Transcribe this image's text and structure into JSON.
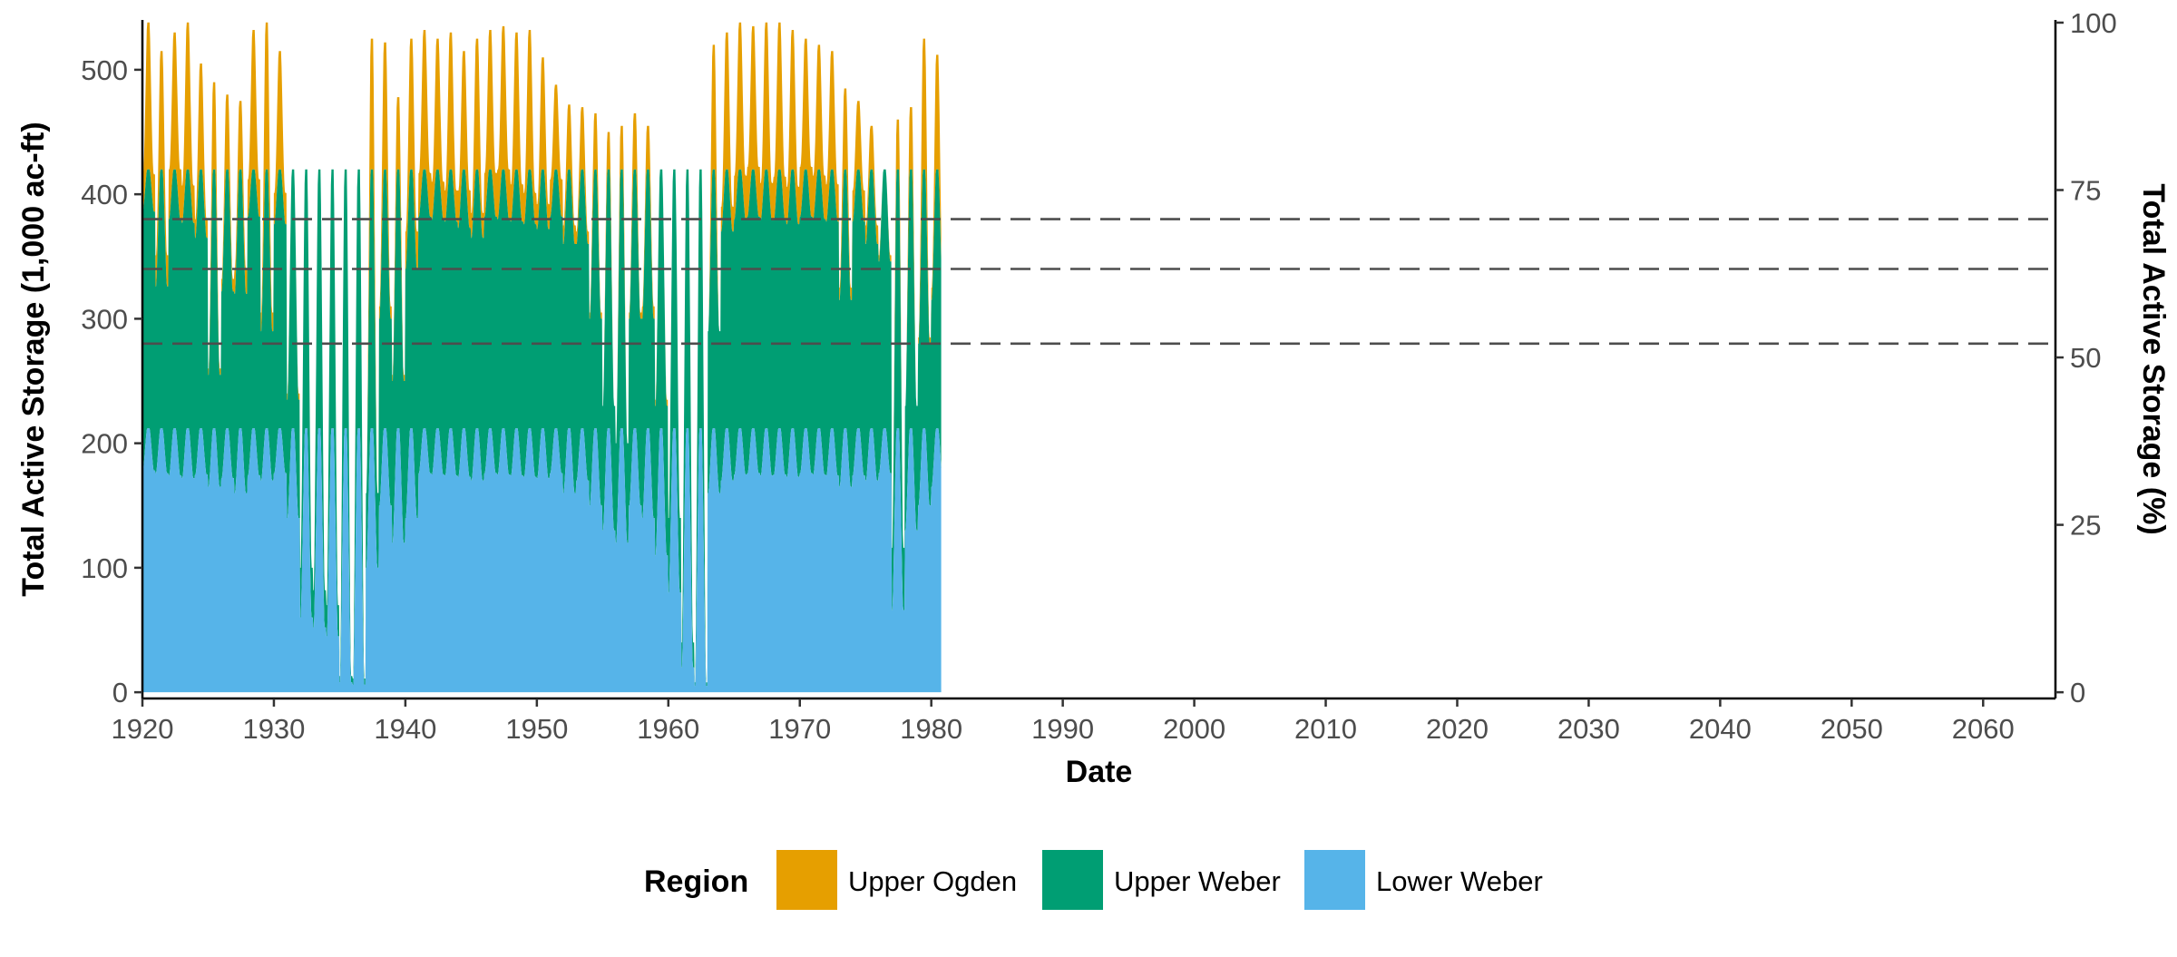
{
  "chart_data": {
    "type": "area",
    "stacked": true,
    "x_axis": {
      "label": "Date",
      "range": [
        1920,
        2065.5
      ],
      "ticks": [
        1920,
        1930,
        1940,
        1950,
        1960,
        1970,
        1980,
        1990,
        2000,
        2010,
        2020,
        2030,
        2040,
        2050,
        2060
      ]
    },
    "y_axis_left": {
      "label": "Total Active Storage (1,000 ac-ft)",
      "range": [
        -5,
        540
      ],
      "ticks": [
        0,
        100,
        200,
        300,
        400,
        500
      ]
    },
    "y_axis_right": {
      "label": "Total Active Storage (%)",
      "range": [
        -0.93,
        100.4
      ],
      "ticks": [
        0,
        25,
        50,
        75,
        100
      ],
      "conversion": "100% = 538 thousand ac-ft"
    },
    "reference_lines": [
      {
        "y": 380,
        "style": "dashed"
      },
      {
        "y": 340,
        "style": "dashed"
      },
      {
        "y": 280,
        "style": "dashed"
      }
    ],
    "grid": false,
    "legend": {
      "title": "Region",
      "position": "bottom",
      "entries": [
        {
          "name": "Upper Ogden",
          "color": "#E69F00"
        },
        {
          "name": "Upper Weber",
          "color": "#009E73"
        },
        {
          "name": "Lower Weber",
          "color": "#56B4E9"
        }
      ]
    },
    "series": [
      {
        "name": "Lower Weber",
        "color": "#56B4E9",
        "capacity": 212,
        "annual_min": [
          178,
          176,
          174,
          172,
          175,
          165,
          172,
          160,
          174,
          170,
          176,
          140,
          60,
          52,
          45,
          8,
          6,
          100,
          150,
          120,
          140,
          176,
          175,
          174,
          173,
          170,
          176,
          175,
          174,
          173,
          172,
          176,
          160,
          170,
          150,
          130,
          120,
          150,
          140,
          110,
          80,
          20,
          5,
          160,
          170,
          175,
          176,
          174,
          175,
          173,
          176,
          175,
          174,
          165,
          174,
          170,
          176,
          66,
          130,
          150,
          165
        ]
      },
      {
        "name": "Upper Weber",
        "color": "#009E73",
        "capacity": 208,
        "annual_min": [
          208,
          150,
          206,
          205,
          190,
          90,
          150,
          160,
          208,
          120,
          200,
          95,
          40,
          30,
          25,
          5,
          5,
          60,
          150,
          130,
          200,
          206,
          205,
          204,
          200,
          195,
          206,
          205,
          204,
          203,
          200,
          206,
          200,
          190,
          150,
          100,
          80,
          150,
          160,
          120,
          60,
          20,
          3,
          130,
          200,
          205,
          206,
          205,
          204,
          203,
          206,
          205,
          204,
          150,
          204,
          190,
          170,
          50,
          100,
          130,
          150
        ]
      },
      {
        "name": "Upper Ogden",
        "color": "#E69F00",
        "capacity": 118,
        "annual_min": [
          30,
          25,
          40,
          30,
          15,
          5,
          10,
          20,
          30,
          15,
          25,
          5,
          0,
          0,
          0,
          0,
          0,
          0,
          10,
          5,
          30,
          35,
          30,
          25,
          30,
          20,
          35,
          40,
          30,
          25,
          20,
          30,
          15,
          10,
          5,
          0,
          0,
          5,
          10,
          5,
          0,
          0,
          0,
          0,
          20,
          35,
          40,
          30,
          35,
          30,
          40,
          35,
          30,
          10,
          25,
          15,
          5,
          0,
          0,
          5,
          10
        ],
        "annual_peak": [
          538,
          515,
          530,
          538,
          505,
          490,
          480,
          475,
          532,
          538,
          515,
          380,
          335,
          390,
          330,
          260,
          400,
          525,
          522,
          478,
          525,
          532,
          525,
          530,
          515,
          525,
          532,
          535,
          530,
          532,
          510,
          488,
          472,
          470,
          465,
          450,
          455,
          465,
          455,
          380,
          250,
          308,
          390,
          520,
          530,
          538,
          535,
          538,
          538,
          532,
          525,
          520,
          515,
          485,
          475,
          455,
          402,
          460,
          470,
          525,
          512
        ]
      }
    ]
  }
}
